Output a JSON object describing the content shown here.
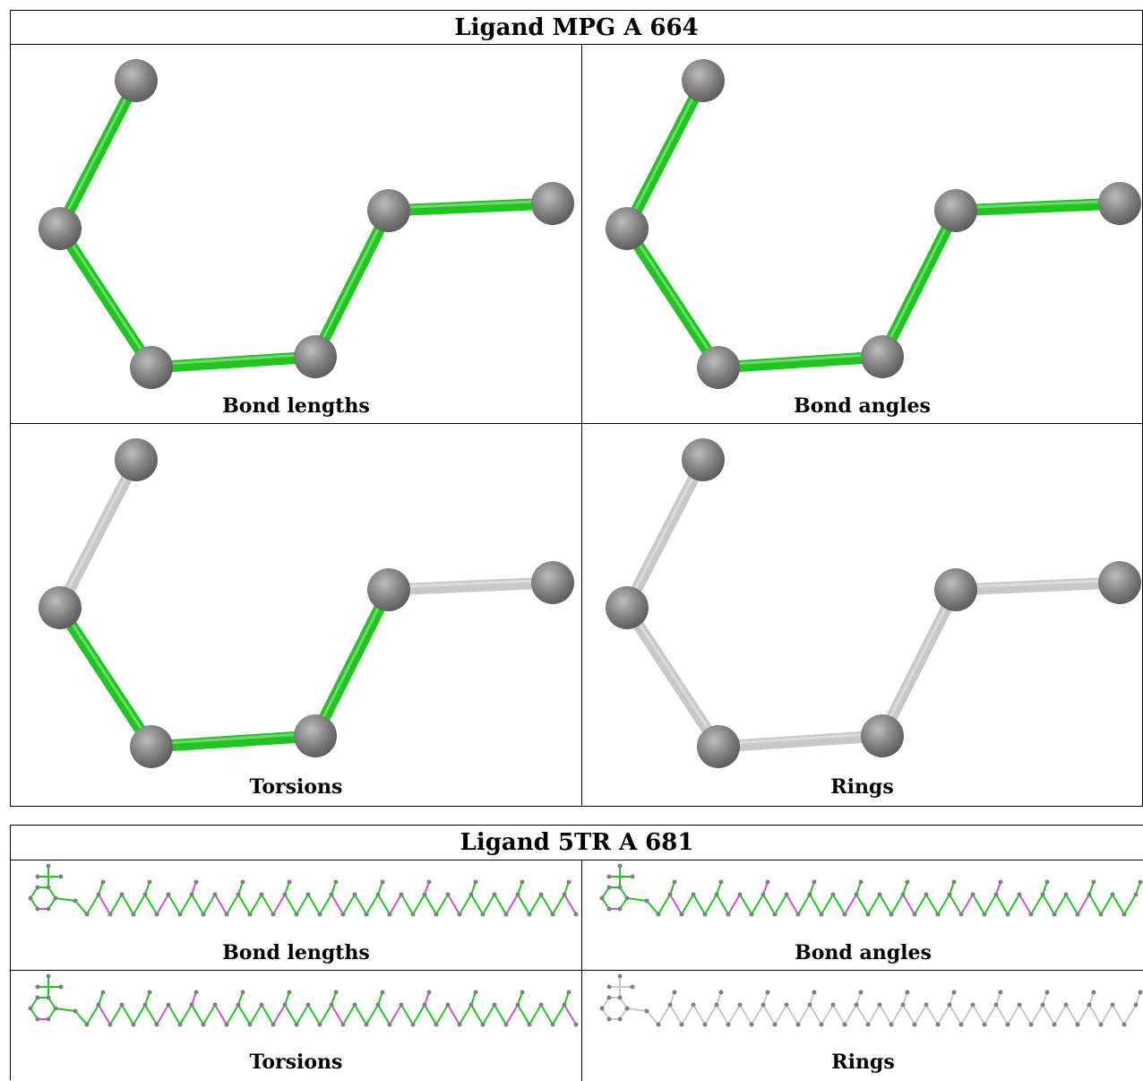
{
  "ligands": [
    {
      "title": "Ligand MPG A 664",
      "panels": [
        {
          "label": "Bond lengths",
          "bond_colors": [
            "green",
            "green",
            "green",
            "green",
            "green"
          ]
        },
        {
          "label": "Bond angles",
          "bond_colors": [
            "green",
            "green",
            "green",
            "green",
            "green"
          ]
        },
        {
          "label": "Torsions",
          "bond_colors": [
            "gray",
            "green",
            "green",
            "green",
            "gray"
          ]
        },
        {
          "label": "Rings",
          "bond_colors": [
            "gray",
            "gray",
            "gray",
            "gray",
            "gray"
          ]
        }
      ]
    },
    {
      "title": "Ligand 5TR A 681",
      "panels": [
        {
          "label": "Bond lengths",
          "scheme": "mixed"
        },
        {
          "label": "Bond angles",
          "scheme": "mixed"
        },
        {
          "label": "Torsions",
          "scheme": "mixed"
        },
        {
          "label": "Rings",
          "scheme": "gray"
        }
      ]
    }
  ],
  "colors": {
    "green": "#22c422",
    "gray": "#c8c8c8",
    "magenta": "#d24fd2",
    "atom": "#808080"
  }
}
